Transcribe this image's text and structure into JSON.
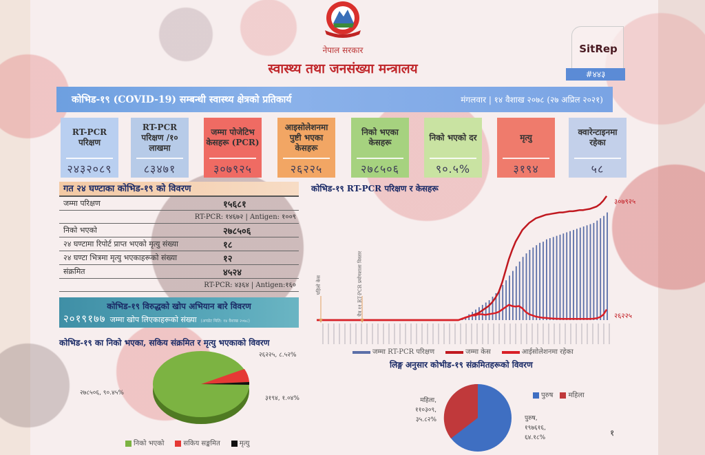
{
  "header": {
    "emblem": "nepal-government-emblem",
    "government": "नेपाल सरकार",
    "ministry": "स्वास्थ्य तथा जनसंख्या मन्त्रालय",
    "sitrep_label": "SitRep",
    "sitrep_number": "#४४३"
  },
  "banner": {
    "title": "कोभिड-१९ (COVID-19) सम्बन्धी स्वास्थ्य क्षेत्रको प्रतिकार्य",
    "date": "मंगलवार | १४ वैशाख २०७८ (२७ अप्रिल २०२१)"
  },
  "cards": [
    {
      "label": "RT-PCR परिक्षण",
      "value": "२४३२०८९",
      "color": "#b9cff0"
    },
    {
      "label": "RT-PCR परिक्षण /१० लाखमा",
      "value": "८३४७१",
      "color": "#b7cbe8"
    },
    {
      "label": "जम्मा पोजेटिभ केसहरू (PCR)",
      "value": "३०७९२५",
      "color": "#ef6b63"
    },
    {
      "label": "आइसोलेशनमा पुष्टी भएका केसहरू",
      "value": "२६२२५",
      "color": "#f2a664"
    },
    {
      "label": "निको भएका केसहरू",
      "value": "२७८५०६",
      "color": "#a6d27f"
    },
    {
      "label": "निको भएको दर",
      "value": "९०.५%",
      "color": "#c9e3a2"
    },
    {
      "label": "मृत्यु",
      "value": "३१९४",
      "color": "#ef7b6c"
    },
    {
      "label": "क्वारेन्टाइनमा रहेका",
      "value": "५८",
      "color": "#c3d0ea"
    }
  ],
  "last24h": {
    "title": "गत २४ घण्टाका कोभिड-१९ को विवरण",
    "rows": [
      {
        "label": "जम्मा परिक्षण",
        "value": "१५६८१",
        "sub": "RT-PCR: १४६७२ | Antigen: १००९"
      },
      {
        "label": "निको भएको",
        "value": "२७८५०६"
      },
      {
        "label": "२४ घण्टामा रिपोर्ट प्राप्त भएको मृत्यु संख्या",
        "value": "१८"
      },
      {
        "label": "२४ घण्टा भित्रमा मृत्यु भएकाहरूको संख्या",
        "value": "१२"
      },
      {
        "label": "संक्रमित",
        "value": "४५२४",
        "sub": "RT-PCR: ४३६४ | Antigen:१६०"
      }
    ]
  },
  "vaccine": {
    "title": "कोभिड-१९ विरुद्धको खोप अभियान बारे विवरण",
    "total": "२०१९१७७",
    "label": "जम्मा खोप लिएकाहरूको संख्या",
    "note": "(अपडेट मिति: १४ वैशाख २०७८)"
  },
  "chart_data": [
    {
      "type": "bar",
      "title": "कोभिड-१९ RT-PCR परिक्षण र केसहरू",
      "annotations": [
        "पहिलो केस",
        "चैत्र ११ RT-PCR प्रयोगशाला विस्तार",
        "३०७९२५",
        "२६२२५"
      ],
      "series": [
        {
          "name": "जम्मा RT-PCR परिक्षण",
          "kind": "bar",
          "color": "#5b6fa8",
          "values": [
            0,
            0,
            0,
            0,
            0,
            0,
            0,
            0,
            0,
            0,
            0,
            0,
            0,
            0,
            0,
            0,
            0,
            0,
            0,
            0,
            0,
            0,
            0,
            0,
            0,
            0,
            0,
            0,
            0,
            0,
            0,
            0,
            0,
            0,
            0,
            0,
            0,
            0,
            0,
            0,
            0,
            0,
            0,
            2,
            3,
            5,
            7,
            9,
            11,
            13,
            15,
            17,
            20,
            23,
            26,
            30,
            34,
            38,
            42,
            46,
            50,
            54,
            57,
            60,
            62,
            64,
            66,
            67,
            69,
            70,
            71,
            72,
            73,
            74,
            75,
            76,
            77,
            78,
            79,
            80,
            81,
            82,
            83,
            85,
            87,
            89,
            92
          ]
        },
        {
          "name": "जम्मा केस",
          "kind": "line",
          "color": "#c0181f",
          "values": [
            0,
            0,
            0,
            0,
            0,
            0,
            0,
            0,
            0,
            0,
            0,
            0,
            0,
            0,
            0,
            0,
            0,
            0,
            0,
            0,
            0,
            0,
            0,
            0,
            0,
            0,
            0,
            0,
            0,
            0,
            0,
            0,
            0,
            0,
            0,
            0,
            0,
            0,
            0,
            0,
            0,
            0,
            0,
            1,
            2,
            3,
            4,
            5,
            6,
            8,
            10,
            12,
            15,
            19,
            24,
            32,
            42,
            52,
            60,
            67,
            72,
            77,
            80,
            83,
            85,
            87,
            88,
            89,
            90,
            90.5,
            91,
            91.5,
            92,
            92,
            92.5,
            93,
            93,
            93.5,
            94,
            94,
            94.5,
            95,
            96,
            97,
            99,
            102,
            106
          ]
        },
        {
          "name": "आईसोलेशनमा रहेका",
          "kind": "line",
          "color": "#d81f26",
          "values": [
            0,
            0,
            0,
            0,
            0,
            0,
            0,
            0,
            0,
            0,
            0,
            0,
            0,
            0,
            0,
            0,
            0,
            0,
            0,
            0,
            0,
            0,
            0,
            0,
            0,
            0,
            0,
            0,
            0,
            0,
            0,
            0,
            0,
            0,
            0,
            0,
            0,
            0,
            0,
            0,
            0,
            0,
            0,
            1,
            2,
            3,
            4,
            4,
            5,
            5,
            4.5,
            5,
            5.5,
            6,
            7,
            9,
            11,
            13,
            12,
            11.5,
            12,
            10,
            7,
            5,
            4,
            3,
            2.5,
            2,
            1.8,
            1.5,
            1.3,
            1.2,
            1.1,
            1,
            1,
            1,
            1,
            1,
            1,
            1,
            1,
            1,
            1.2,
            1.5,
            2.5,
            4.5,
            9
          ]
        }
      ],
      "xlabel": "",
      "ylabel": "",
      "grid": false,
      "legend_position": "bottom"
    },
    {
      "type": "pie",
      "title": "कोभिड-१९ का निको भएका, सकिय संक्रमित र मृत्यु भएकाको विवरण",
      "categories": [
        "निको भएको",
        "सकिय सङ्कमित",
        "मृत्यु"
      ],
      "values": [
        278506,
        26225,
        3194
      ],
      "labels": [
        "२७८५०६, ९०.४५%",
        "२६२२५, ८.५२%",
        "३१९४, १.०४%"
      ],
      "colors": [
        "#7cb342",
        "#e53935",
        "#111111"
      ],
      "legend_position": "bottom"
    },
    {
      "type": "pie",
      "title": "लिङ्ग अनुसार कोभीड-१९ संक्रमितहरूको विवरण",
      "categories": [
        "पुरुष",
        "महिला"
      ],
      "values": [
        197616,
        110309
      ],
      "labels": [
        "पुरुष, १९७६१६, ६४.१८%",
        "महिला, ११०३०९, ३५.८२%"
      ],
      "colors": [
        "#3f6fc2",
        "#c0393b"
      ],
      "legend_position": "right"
    }
  ],
  "rtpcr_chart": {
    "title": "कोभिड-१९ RT-PCR परिक्षण र केसहरू",
    "end_total_label": "३०७९२५",
    "end_active_label": "२६२२५",
    "first_case_note": "पहिलो केस",
    "lab_note": "चैत्र ११ RT-PCR प्रयोगशाला विस्तार",
    "legend": [
      "जम्मा RT-PCR परिक्षण",
      "जम्मा केस",
      "आईसोलेशनमा रहेका"
    ]
  },
  "outcome_pie": {
    "title": "कोभिड-१९ का निको भएका, सकिय संक्रमित र मृत्यु भएकाको विवरण",
    "label_recovered": "२७८५०६, ९०.४५%",
    "label_active": "२६२२५, ८.५२%",
    "label_death": "३१९४, १.०४%",
    "legend": [
      "निको भएको",
      "सकिय सङ्कमित",
      "मृत्यु"
    ]
  },
  "gender_pie": {
    "title": "लिङ्ग अनुसार कोभीड-१९ संक्रमितहरूको विवरण",
    "female_name": "महिला,",
    "female_count": "११०३०९,",
    "female_pct": "३५.८२%",
    "male_name": "पुरुष,",
    "male_count": "१९७६१६,",
    "male_pct": "६४.१८%",
    "legend": [
      "पुरुष",
      "महिला"
    ]
  },
  "page_number": "१"
}
